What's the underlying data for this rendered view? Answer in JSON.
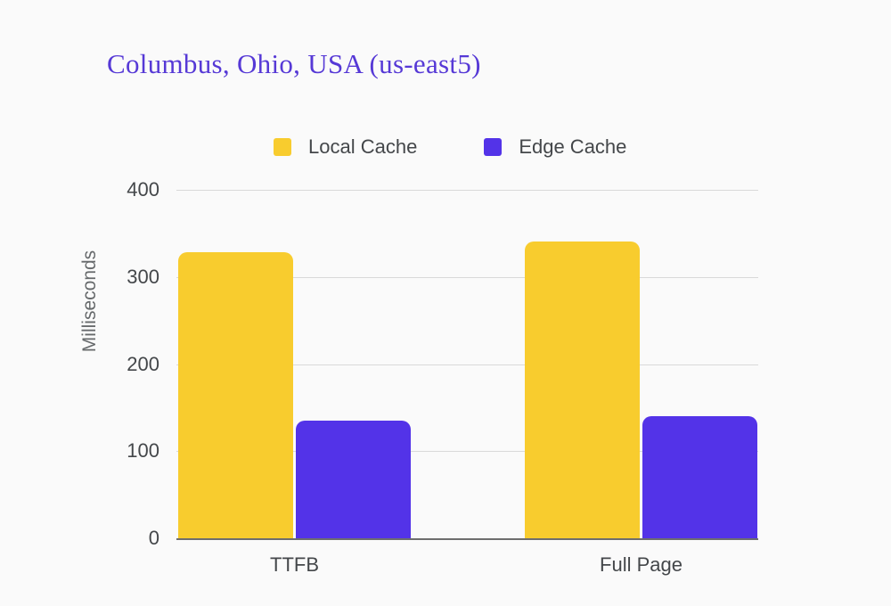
{
  "title": "Columbus, Ohio, USA (us-east5)",
  "colors": {
    "background": "#FAFAFA",
    "title_text": "#5639D6",
    "axis_text": "#44474A",
    "y_axis_title_text": "#66696B",
    "gridline": "#D9D9D9",
    "axis_line": "#6E6E6E",
    "local_cache": "#F8CC2E",
    "edge_cache": "#5333E8"
  },
  "chart_data": {
    "type": "bar",
    "title": "Columbus, Ohio, USA (us-east5)",
    "categories": [
      "TTFB",
      "Full Page"
    ],
    "series": [
      {
        "name": "Local Cache",
        "color": "#F8CC2E",
        "values": [
          328,
          341
        ]
      },
      {
        "name": "Edge Cache",
        "color": "#5333E8",
        "values": [
          135,
          140
        ]
      }
    ],
    "xlabel": "",
    "ylabel": "Milliseconds",
    "ylim": [
      0,
      400
    ],
    "yticks": [
      0,
      100,
      200,
      300,
      400
    ],
    "grid": true,
    "legend_position": "top"
  }
}
